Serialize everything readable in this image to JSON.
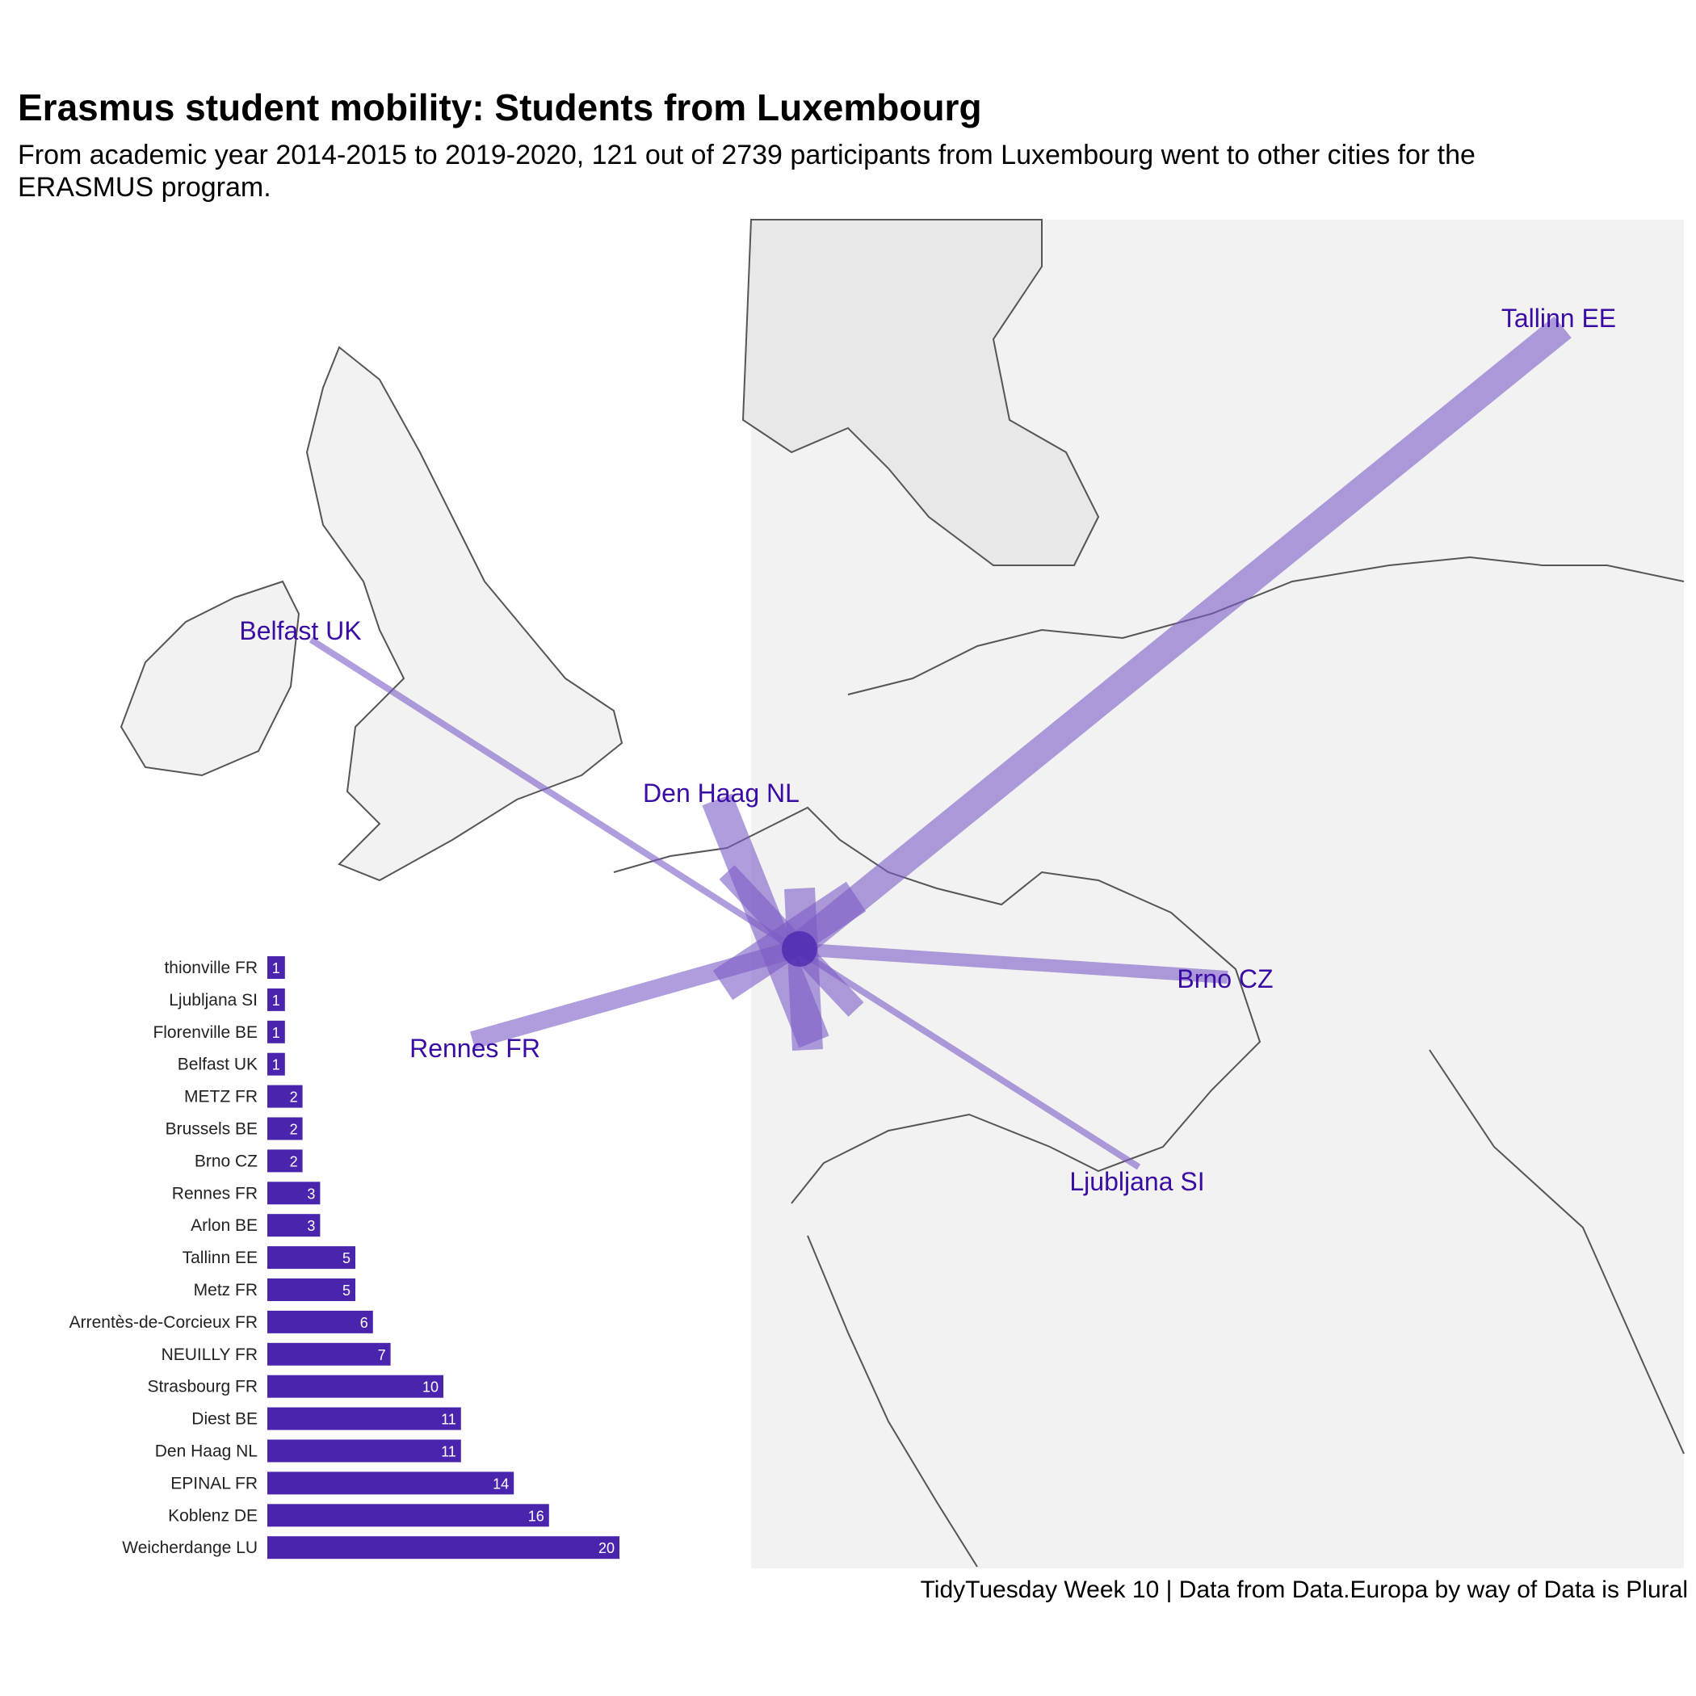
{
  "title": "Erasmus student mobility: Students from Luxembourg",
  "subtitle": "From academic year 2014-2015 to 2019-2020, 121 out of 2739 participants from Luxembourg went to other cities for the ERASMUS program.",
  "caption": "TidyTuesday Week 10 | Data from Data.Europa by way of Data is Plural",
  "colors": {
    "land": "#f2f2f2",
    "border": "#555555",
    "flow": "#7b5cc7",
    "bar": "#4a24ad",
    "city_label": "#3a0ca3"
  },
  "map": {
    "origin": "Luxembourg",
    "city_labels": [
      "Tallinn EE",
      "Belfast UK",
      "Den Haag NL",
      "Brno CZ",
      "Rennes FR",
      "Ljubljana SI"
    ]
  },
  "chart_data": {
    "type": "bar",
    "orientation": "horizontal",
    "categories": [
      "thionville FR",
      "Ljubljana SI",
      "Florenville BE",
      "Belfast UK",
      "METZ FR",
      "Brussels BE",
      "Brno CZ",
      "Rennes FR",
      "Arlon BE",
      "Tallinn EE",
      "Metz FR",
      "Arrentès-de-Corcieux FR",
      "NEUILLY FR",
      "Strasbourg FR",
      "Diest BE",
      "Den Haag NL",
      "EPINAL FR",
      "Koblenz DE",
      "Weicherdange LU"
    ],
    "values": [
      1,
      1,
      1,
      1,
      2,
      2,
      2,
      3,
      3,
      5,
      5,
      6,
      7,
      10,
      11,
      11,
      14,
      16,
      20
    ],
    "xlim": [
      0,
      20
    ]
  }
}
